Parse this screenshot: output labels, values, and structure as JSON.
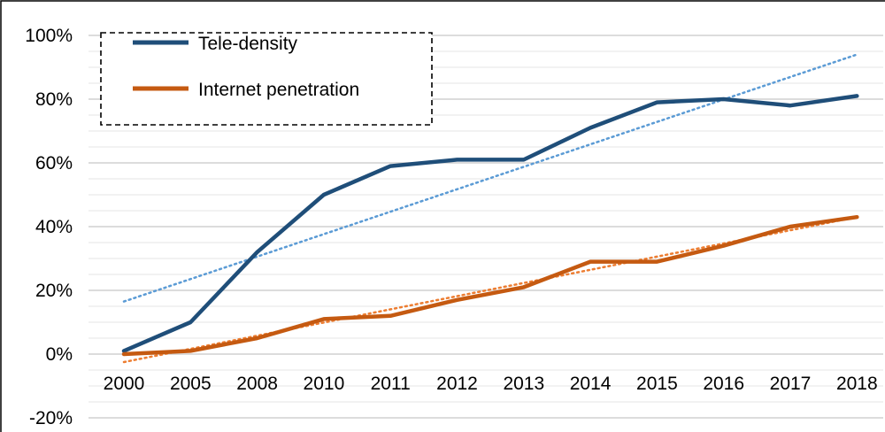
{
  "chart_data": {
    "type": "line",
    "categories": [
      "2000",
      "2005",
      "2008",
      "2010",
      "2011",
      "2012",
      "2013",
      "2014",
      "2015",
      "2016",
      "2017",
      "2018"
    ],
    "y_ticks": [
      "-20%",
      "0%",
      "20%",
      "40%",
      "60%",
      "80%",
      "100%"
    ],
    "y_tick_values": [
      -20,
      0,
      20,
      40,
      60,
      80,
      100
    ],
    "ylim": [
      -20,
      100
    ],
    "grid": true,
    "legend": "top-left",
    "series": [
      {
        "name": "Tele-density",
        "color": "#1f4e79",
        "values": [
          1,
          10,
          32,
          50,
          59,
          61,
          61,
          71,
          79,
          80,
          78,
          81
        ],
        "trendline": {
          "color": "#5b9bd5",
          "start": 16.5,
          "end": 94
        }
      },
      {
        "name": "Internet penetration",
        "color": "#c55a11",
        "values": [
          0,
          1,
          5,
          11,
          12,
          17,
          21,
          29,
          29,
          34,
          40,
          43
        ],
        "trendline": {
          "color": "#ed7d31",
          "start": -2.5,
          "end": 43
        }
      }
    ]
  }
}
